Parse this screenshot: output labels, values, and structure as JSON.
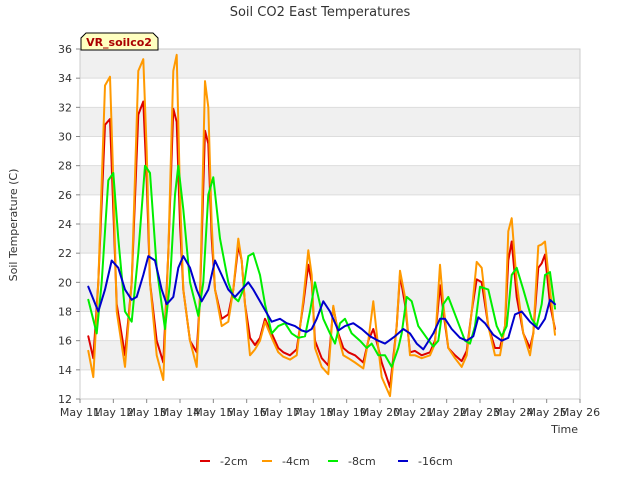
{
  "chart_data": {
    "type": "line",
    "title": "Soil CO2 East Temperatures",
    "xlabel": "Time",
    "ylabel": "Soil Temperature (C)",
    "station_label": "VR_soilco2",
    "xlim": [
      11,
      26
    ],
    "ylim": [
      12,
      36
    ],
    "x_ticks": [
      {
        "value": 11,
        "label": "May 11"
      },
      {
        "value": 12,
        "label": "May 12"
      },
      {
        "value": 13,
        "label": "May 13"
      },
      {
        "value": 14,
        "label": "May 14"
      },
      {
        "value": 15,
        "label": "May 15"
      },
      {
        "value": 16,
        "label": "May 16"
      },
      {
        "value": 17,
        "label": "May 17"
      },
      {
        "value": 18,
        "label": "May 18"
      },
      {
        "value": 19,
        "label": "May 19"
      },
      {
        "value": 20,
        "label": "May 20"
      },
      {
        "value": 21,
        "label": "May 21"
      },
      {
        "value": 22,
        "label": "May 22"
      },
      {
        "value": 23,
        "label": "May 23"
      },
      {
        "value": 24,
        "label": "May 24"
      },
      {
        "value": 25,
        "label": "May 25"
      },
      {
        "value": 26,
        "label": "May 26"
      }
    ],
    "y_ticks": [
      12,
      14,
      16,
      18,
      20,
      22,
      24,
      26,
      28,
      30,
      32,
      34,
      36
    ],
    "series": [
      {
        "name": "-2cm",
        "color": "#dd0000",
        "x": [
          11.25,
          11.4,
          11.55,
          11.75,
          11.9,
          12.0,
          12.1,
          12.35,
          12.55,
          12.75,
          12.9,
          13.0,
          13.1,
          13.3,
          13.5,
          13.65,
          13.8,
          13.9,
          14.0,
          14.1,
          14.3,
          14.5,
          14.6,
          14.75,
          14.85,
          14.95,
          15.05,
          15.25,
          15.45,
          15.6,
          15.75,
          15.85,
          15.95,
          16.1,
          16.25,
          16.4,
          16.55,
          16.75,
          16.95,
          17.1,
          17.3,
          17.5,
          17.7,
          17.85,
          17.95,
          18.05,
          18.25,
          18.45,
          18.6,
          18.75,
          18.9,
          19.05,
          19.25,
          19.5,
          19.65,
          19.8,
          19.95,
          20.05,
          20.3,
          20.5,
          20.6,
          20.75,
          20.9,
          21.05,
          21.25,
          21.5,
          21.65,
          21.8,
          21.9,
          22.05,
          22.25,
          22.45,
          22.6,
          22.75,
          22.9,
          23.05,
          23.25,
          23.45,
          23.6,
          23.75,
          23.85,
          23.95,
          24.1,
          24.3,
          24.5,
          24.6,
          24.75,
          24.85,
          24.95,
          25.1,
          25.25
        ],
        "y": [
          16.3,
          14.8,
          20,
          30.8,
          31.2,
          25,
          18.5,
          15,
          20,
          31.5,
          32.4,
          27,
          20,
          16,
          14.5,
          22,
          31.9,
          31,
          24,
          19.5,
          16,
          15.2,
          19,
          30.4,
          29.5,
          23,
          19.5,
          17.5,
          17.8,
          19.5,
          22.5,
          21.5,
          18.5,
          16.2,
          15.7,
          16.2,
          17.5,
          16.5,
          15.5,
          15.2,
          15,
          15.4,
          18.5,
          21.2,
          20,
          16,
          14.8,
          14.3,
          18.3,
          16.5,
          15.5,
          15.2,
          15,
          14.5,
          16,
          16.8,
          15.5,
          14.5,
          12.8,
          17,
          20.5,
          18.5,
          15.2,
          15.3,
          15,
          15.2,
          16,
          19.8,
          18,
          15.5,
          15,
          14.6,
          15.3,
          18,
          20.2,
          20,
          17,
          15.5,
          15.5,
          17,
          21.5,
          22.8,
          19,
          16.5,
          15.5,
          16.5,
          21,
          21.3,
          21.9,
          18.5,
          16.8
        ]
      },
      {
        "name": "-4cm",
        "color": "#ff9900",
        "x": [
          11.25,
          11.4,
          11.55,
          11.75,
          11.9,
          12.0,
          12.1,
          12.35,
          12.55,
          12.75,
          12.9,
          13.0,
          13.1,
          13.3,
          13.5,
          13.65,
          13.8,
          13.9,
          14.0,
          14.1,
          14.3,
          14.5,
          14.6,
          14.75,
          14.85,
          14.95,
          15.05,
          15.25,
          15.45,
          15.6,
          15.75,
          15.85,
          15.95,
          16.1,
          16.25,
          16.4,
          16.55,
          16.75,
          16.95,
          17.1,
          17.3,
          17.5,
          17.7,
          17.85,
          17.95,
          18.05,
          18.25,
          18.45,
          18.6,
          18.75,
          18.9,
          19.05,
          19.25,
          19.5,
          19.65,
          19.8,
          19.95,
          20.05,
          20.3,
          20.5,
          20.6,
          20.75,
          20.9,
          21.05,
          21.25,
          21.5,
          21.65,
          21.8,
          21.9,
          22.05,
          22.25,
          22.45,
          22.6,
          22.75,
          22.9,
          23.05,
          23.25,
          23.45,
          23.6,
          23.75,
          23.85,
          23.95,
          24.1,
          24.3,
          24.5,
          24.6,
          24.75,
          24.85,
          24.95,
          25.1,
          25.25
        ],
        "y": [
          15.3,
          13.5,
          20,
          33.5,
          34.1,
          27,
          18,
          14.2,
          20,
          34.5,
          35.3,
          29,
          20,
          15,
          13.3,
          22,
          34.5,
          35.6,
          26,
          19.5,
          16,
          14.2,
          19,
          33.8,
          32,
          24,
          19.5,
          17,
          17.3,
          19.5,
          23,
          21.5,
          18.5,
          15,
          15.4,
          16,
          17.3,
          16.2,
          15.2,
          14.9,
          14.7,
          15,
          18.8,
          22.2,
          20.5,
          15.5,
          14.2,
          13.7,
          18.4,
          16.3,
          15,
          14.8,
          14.5,
          14.1,
          16,
          18.7,
          15.5,
          13.5,
          12.2,
          17,
          20.8,
          19,
          15,
          15,
          14.8,
          15,
          15.8,
          21.2,
          18.5,
          15.5,
          14.8,
          14.2,
          15,
          18,
          21.4,
          21,
          17,
          15,
          15,
          17,
          23.5,
          24.4,
          20,
          16.5,
          15,
          16.5,
          22.5,
          22.6,
          22.8,
          19.5,
          16.4
        ]
      },
      {
        "name": "-8cm",
        "color": "#00ee00",
        "x": [
          11.25,
          11.5,
          11.65,
          11.85,
          12.0,
          12.15,
          12.35,
          12.55,
          12.75,
          12.95,
          13.1,
          13.3,
          13.55,
          13.7,
          13.85,
          13.95,
          14.1,
          14.3,
          14.55,
          14.7,
          14.85,
          15.0,
          15.2,
          15.45,
          15.6,
          15.75,
          15.9,
          16.05,
          16.2,
          16.4,
          16.55,
          16.75,
          16.95,
          17.15,
          17.35,
          17.55,
          17.75,
          17.9,
          18.05,
          18.3,
          18.5,
          18.65,
          18.8,
          18.95,
          19.15,
          19.4,
          19.6,
          19.75,
          19.95,
          20.15,
          20.35,
          20.55,
          20.65,
          20.8,
          20.95,
          21.15,
          21.4,
          21.6,
          21.75,
          21.9,
          22.05,
          22.3,
          22.55,
          22.7,
          22.85,
          23.0,
          23.25,
          23.5,
          23.65,
          23.8,
          23.95,
          24.1,
          24.3,
          24.55,
          24.7,
          24.85,
          24.95,
          25.1,
          25.25
        ],
        "y": [
          18.8,
          16.5,
          20,
          27,
          27.5,
          23,
          18,
          17.3,
          22,
          28,
          27.5,
          21,
          16.8,
          20,
          26,
          28,
          25,
          20,
          17.7,
          20,
          26,
          27.2,
          23,
          20,
          19,
          18.7,
          19.5,
          21.8,
          22,
          20.5,
          18.5,
          16.5,
          17,
          17.2,
          16.5,
          16.2,
          16.3,
          18,
          20,
          17.5,
          16.5,
          15.8,
          17.2,
          17.5,
          16.5,
          16,
          15.5,
          15.8,
          15,
          15,
          14.2,
          15.5,
          16.5,
          19,
          18.7,
          17,
          16.2,
          15.6,
          16,
          18.5,
          19,
          17.5,
          16,
          15.8,
          17,
          19.7,
          19.5,
          17,
          16.3,
          17,
          20.5,
          21,
          19.5,
          17.5,
          17,
          18.5,
          20.5,
          20.7,
          18.2
        ]
      },
      {
        "name": "-16cm",
        "color": "#0000cc",
        "x": [
          11.25,
          11.55,
          11.75,
          11.95,
          12.15,
          12.35,
          12.55,
          12.7,
          12.9,
          13.05,
          13.25,
          13.45,
          13.6,
          13.8,
          13.95,
          14.1,
          14.3,
          14.5,
          14.65,
          14.85,
          15.05,
          15.25,
          15.45,
          15.65,
          15.85,
          16.05,
          16.2,
          16.45,
          16.75,
          17.0,
          17.2,
          17.45,
          17.65,
          17.8,
          17.95,
          18.1,
          18.3,
          18.5,
          18.75,
          18.95,
          19.2,
          19.45,
          19.7,
          19.95,
          20.15,
          20.45,
          20.7,
          20.9,
          21.1,
          21.3,
          21.6,
          21.8,
          21.95,
          22.15,
          22.4,
          22.6,
          22.8,
          22.95,
          23.15,
          23.4,
          23.65,
          23.85,
          24.05,
          24.25,
          24.5,
          24.75,
          24.95,
          25.1,
          25.25
        ],
        "y": [
          19.7,
          18,
          19.5,
          21.5,
          21,
          19.5,
          18.8,
          19,
          20.5,
          21.8,
          21.5,
          19.5,
          18.5,
          19,
          21,
          21.8,
          21,
          19.5,
          18.7,
          19.5,
          21.5,
          20.5,
          19.5,
          19,
          19.5,
          20,
          19.5,
          18.5,
          17.3,
          17.5,
          17.2,
          17,
          16.7,
          16.6,
          16.8,
          17.5,
          18.7,
          18,
          16.7,
          17,
          17.2,
          16.8,
          16.3,
          16,
          15.8,
          16.3,
          16.8,
          16.5,
          15.8,
          15.4,
          16.5,
          17.5,
          17.5,
          16.8,
          16.2,
          16,
          16.3,
          17.6,
          17.2,
          16.4,
          16,
          16.2,
          17.8,
          18,
          17.3,
          16.8,
          17.5,
          18.8,
          18.5
        ]
      }
    ]
  }
}
